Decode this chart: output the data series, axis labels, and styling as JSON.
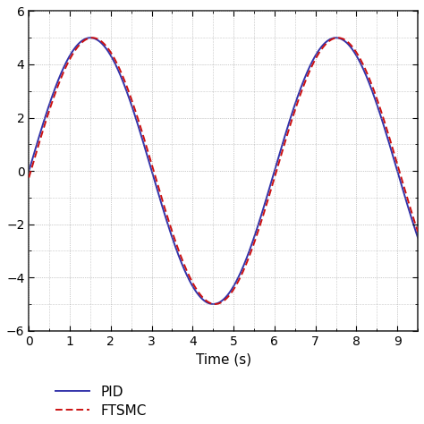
{
  "xlabel": "Time (s)",
  "xlim": [
    0,
    9.5
  ],
  "ylim": [
    -6,
    6
  ],
  "xticks": [
    0,
    1,
    2,
    3,
    4,
    5,
    6,
    7,
    8,
    9
  ],
  "yticks": [
    -6,
    -4,
    -2,
    0,
    2,
    4,
    6
  ],
  "pid_color": "#3333aa",
  "ftsmc_color": "#cc1111",
  "pid_linewidth": 1.4,
  "ftsmc_linewidth": 1.4,
  "amplitude": 5.0,
  "period": 6.0,
  "t_start": 0,
  "t_end": 9.5,
  "n_points": 2000,
  "background_color": "#ffffff",
  "grid_color": "#999999",
  "legend_pid": "PID",
  "legend_ftsmc": "FTSMC",
  "pid_phase": 0.0,
  "ftsmc_phase": 0.05
}
